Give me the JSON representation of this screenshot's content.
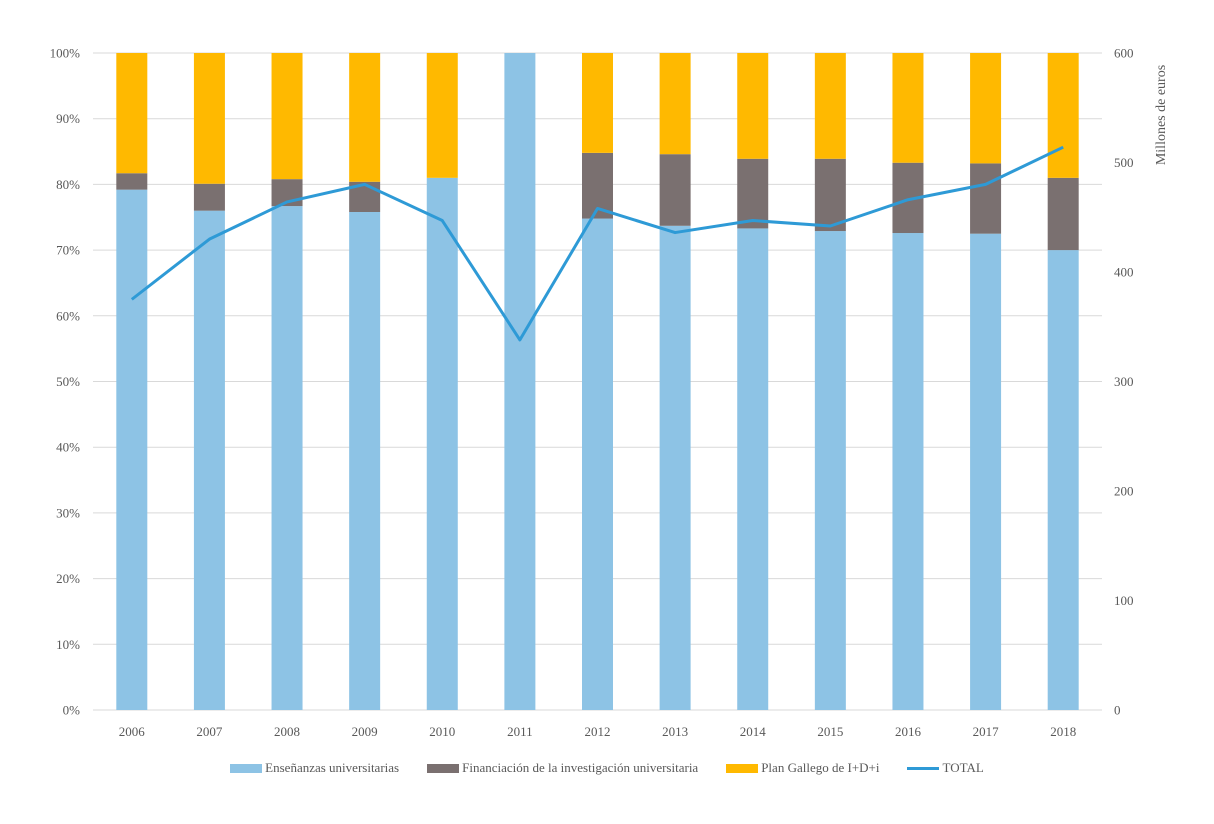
{
  "chart_data": {
    "type": "bar",
    "subtype": "stacked-100-percent-with-line",
    "title": "",
    "categories": [
      "2006",
      "2007",
      "2008",
      "2009",
      "2010",
      "2011",
      "2012",
      "2013",
      "2014",
      "2015",
      "2016",
      "2017",
      "2018"
    ],
    "series": [
      {
        "name": "Enseñanzas universitarias",
        "type": "bar",
        "axis": "left",
        "color": "#8DC3E5",
        "values": [
          79.2,
          76.0,
          76.7,
          75.8,
          81.0,
          100.0,
          74.8,
          73.7,
          73.3,
          72.9,
          72.6,
          72.5,
          70.0
        ]
      },
      {
        "name": "Financiación de la investigación universitaria",
        "type": "bar",
        "axis": "left",
        "color": "#7A7070",
        "values": [
          2.5,
          4.1,
          4.1,
          4.6,
          0.0,
          0.0,
          10.0,
          10.9,
          10.6,
          11.0,
          10.7,
          10.7,
          11.0
        ]
      },
      {
        "name": "Plan Gallego de I+D+i",
        "type": "bar",
        "axis": "left",
        "color": "#FFB900",
        "values": [
          18.3,
          19.9,
          19.2,
          19.6,
          19.0,
          0.0,
          15.2,
          15.4,
          16.1,
          16.1,
          16.7,
          16.8,
          19.0
        ]
      },
      {
        "name": "TOTAL",
        "type": "line",
        "axis": "right",
        "color": "#2E9AD6",
        "values": [
          375,
          430,
          464,
          480,
          447,
          338,
          458,
          436,
          447,
          442,
          466,
          480,
          514
        ]
      }
    ],
    "left_axis": {
      "label": "",
      "ylim": [
        0,
        100
      ],
      "ticks": [
        "0%",
        "10%",
        "20%",
        "30%",
        "40%",
        "50%",
        "60%",
        "70%",
        "80%",
        "90%",
        "100%"
      ]
    },
    "right_axis": {
      "label": "Millones de euros",
      "ylim": [
        0,
        600
      ],
      "ticks": [
        "0",
        "100",
        "200",
        "300",
        "400",
        "500",
        "600"
      ]
    },
    "xlabel": "",
    "grid": true,
    "legend_position": "bottom"
  }
}
